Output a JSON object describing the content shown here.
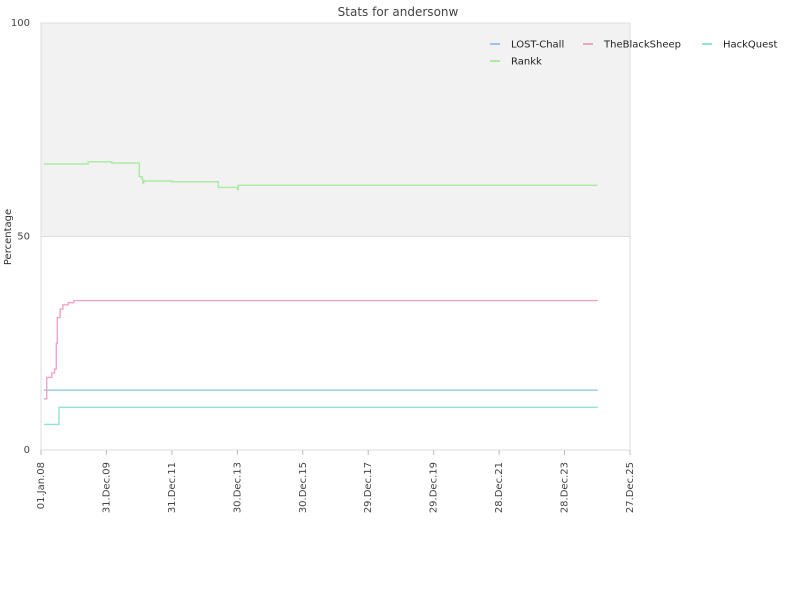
{
  "chart_data": {
    "type": "line",
    "title": "Stats for andersonw",
    "ylabel": "Percentage",
    "xlabel": "",
    "ylim": [
      0,
      100
    ],
    "y_ticks": [
      0,
      50,
      100
    ],
    "x_ticks": [
      "01.Jan.08",
      "31.Dec.09",
      "31.Dec.11",
      "30.Dec.13",
      "30.Dec.15",
      "29.Dec.17",
      "29.Dec.19",
      "28.Dec.21",
      "28.Dec.23",
      "27.Dec.25"
    ],
    "xlim": [
      "2008-01-01",
      "2025-12-27"
    ],
    "shaded_band": [
      50,
      100
    ],
    "legend_position": "top-right",
    "series": [
      {
        "name": "LOST-Chall",
        "color": "#99c6e6",
        "points": [
          [
            "2008-02-01",
            14
          ],
          [
            "2025-01-01",
            14
          ]
        ]
      },
      {
        "name": "TheBlackSheep",
        "color": "#f0a3c6",
        "points": [
          [
            "2008-02-01",
            12
          ],
          [
            "2008-03-01",
            12
          ],
          [
            "2008-03-05",
            17
          ],
          [
            "2008-05-01",
            18
          ],
          [
            "2008-06-01",
            19
          ],
          [
            "2008-06-20",
            25
          ],
          [
            "2008-07-01",
            31
          ],
          [
            "2008-08-01",
            33
          ],
          [
            "2008-09-01",
            34
          ],
          [
            "2008-11-01",
            34.5
          ],
          [
            "2009-01-01",
            35
          ],
          [
            "2025-01-01",
            35
          ]
        ]
      },
      {
        "name": "HackQuest",
        "color": "#8fe3d4",
        "points": [
          [
            "2008-02-01",
            6
          ],
          [
            "2008-07-15",
            6
          ],
          [
            "2008-07-20",
            10
          ],
          [
            "2025-01-01",
            10
          ]
        ]
      },
      {
        "name": "Rankk",
        "color": "#a8eaa0",
        "points": [
          [
            "2008-02-01",
            67
          ],
          [
            "2009-06-01",
            67
          ],
          [
            "2009-06-10",
            67.5
          ],
          [
            "2010-03-01",
            67.2
          ],
          [
            "2011-01-01",
            64
          ],
          [
            "2011-02-01",
            63.5
          ],
          [
            "2011-02-10",
            62.5
          ],
          [
            "2011-02-20",
            63
          ],
          [
            "2012-01-01",
            62.8
          ],
          [
            "2013-06-01",
            61.5
          ],
          [
            "2014-01-01",
            61
          ],
          [
            "2014-01-10",
            62
          ],
          [
            "2025-01-01",
            62
          ]
        ]
      }
    ]
  }
}
